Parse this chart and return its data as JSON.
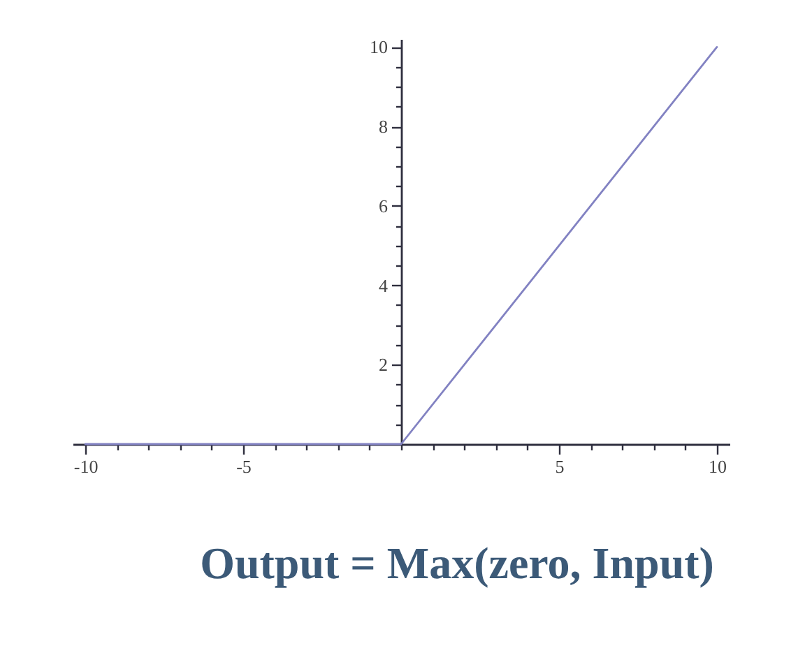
{
  "chart_data": {
    "type": "line",
    "title": "Output = Max(zero, Input)",
    "x": [
      -10,
      0,
      10
    ],
    "series": [
      {
        "color": "#8282c2",
        "values": [
          0,
          0,
          10
        ]
      }
    ],
    "xlim": [
      -10.4,
      10.4
    ],
    "ylim": [
      0,
      10.2
    ],
    "xticks": [
      -10,
      {
        "value": -9,
        "label": null
      },
      {
        "value": -8,
        "label": null
      },
      {
        "value": -7,
        "label": null
      },
      {
        "value": -6,
        "label": null
      },
      -5,
      {
        "value": -4,
        "label": null
      },
      {
        "value": -3,
        "label": null
      },
      {
        "value": -2,
        "label": null
      },
      {
        "value": -1,
        "label": null
      },
      {
        "value": 0,
        "label": null
      },
      {
        "value": 1,
        "label": null
      },
      {
        "value": 2,
        "label": null
      },
      {
        "value": 3,
        "label": null
      },
      {
        "value": 4,
        "label": null
      },
      5,
      {
        "value": 6,
        "label": null
      },
      {
        "value": 7,
        "label": null
      },
      {
        "value": 8,
        "label": null
      },
      {
        "value": 9,
        "label": null
      },
      10
    ],
    "yticks": [
      {
        "value": 0.5,
        "label": null
      },
      {
        "value": 1,
        "label": null
      },
      {
        "value": 1.5,
        "label": null
      },
      2,
      {
        "value": 2.5,
        "label": null
      },
      {
        "value": 3,
        "label": null
      },
      {
        "value": 3.5,
        "label": null
      },
      4,
      {
        "value": 4.5,
        "label": null
      },
      {
        "value": 5,
        "label": null
      },
      {
        "value": 5.5,
        "label": null
      },
      6,
      {
        "value": 6.5,
        "label": null
      },
      {
        "value": 7,
        "label": null
      },
      {
        "value": 7.5,
        "label": null
      },
      8,
      {
        "value": 8.5,
        "label": null
      },
      {
        "value": 9,
        "label": null
      },
      {
        "value": 9.5,
        "label": null
      },
      10
    ],
    "line_style": "solid"
  }
}
